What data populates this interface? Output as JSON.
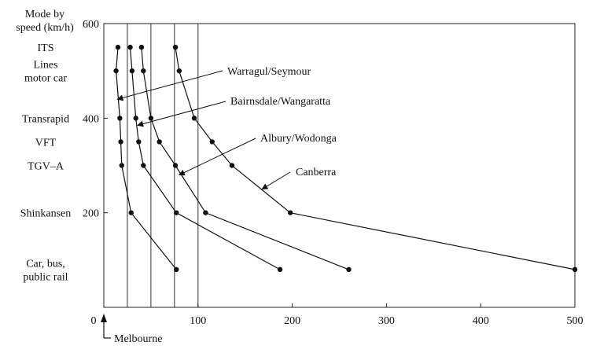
{
  "chart_data": {
    "type": "line",
    "ylabel": "Mode by speed (km/h)",
    "xlim": [
      0,
      500
    ],
    "ylim": [
      0,
      600
    ],
    "x_ticks": [
      100,
      200,
      300,
      400,
      500
    ],
    "x_zero_label": "0",
    "y_ticks": [
      200,
      400,
      600
    ],
    "origin_marker_label": "Melbourne",
    "reference_lines_x": [
      25,
      50,
      75,
      100
    ],
    "modes": [
      {
        "label": "ITS",
        "speed": 550
      },
      {
        "label": "Lines motor car",
        "speed": 500
      },
      {
        "label": "Transrapid",
        "speed": 400
      },
      {
        "label": "VFT",
        "speed": 350
      },
      {
        "label": "TGV–A",
        "speed": 300
      },
      {
        "label": "Shinkansen",
        "speed": 200
      },
      {
        "label": "Car, bus, public rail",
        "speed": 80
      }
    ],
    "series": [
      {
        "name": "Warragul/Seymour",
        "points": [
          [
            15,
            550
          ],
          [
            13,
            500
          ],
          [
            17,
            400
          ],
          [
            18,
            350
          ],
          [
            19,
            300
          ],
          [
            29,
            200
          ],
          [
            77,
            80
          ]
        ]
      },
      {
        "name": "Bairnsdale/Wangaratta",
        "points": [
          [
            28,
            550
          ],
          [
            30,
            500
          ],
          [
            34,
            400
          ],
          [
            37,
            350
          ],
          [
            42,
            300
          ],
          [
            77,
            200
          ],
          [
            187,
            80
          ]
        ]
      },
      {
        "name": "Albury/Wodonga",
        "points": [
          [
            40,
            550
          ],
          [
            42,
            500
          ],
          [
            50,
            400
          ],
          [
            59,
            350
          ],
          [
            76,
            300
          ],
          [
            108,
            200
          ],
          [
            260,
            80
          ]
        ]
      },
      {
        "name": "Canberra",
        "points": [
          [
            76,
            550
          ],
          [
            80,
            500
          ],
          [
            96,
            400
          ],
          [
            115,
            350
          ],
          [
            136,
            300
          ],
          [
            198,
            200
          ],
          [
            500,
            80
          ]
        ]
      }
    ],
    "annotations": [
      {
        "text": "Warragul/Seymour",
        "series": "Warragul/Seymour"
      },
      {
        "text": "Bairnsdale/Wangaratta",
        "series": "Bairnsdale/Wangaratta"
      },
      {
        "text": "Albury/Wodonga",
        "series": "Albury/Wodonga"
      },
      {
        "text": "Canberra",
        "series": "Canberra"
      }
    ],
    "grid": false,
    "legend": "none"
  }
}
